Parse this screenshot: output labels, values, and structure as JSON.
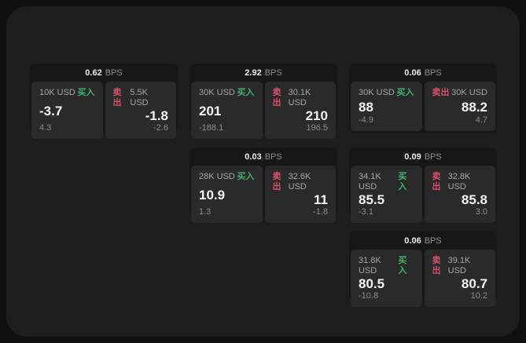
{
  "labels": {
    "bps_unit": "BPS",
    "buy": "买入",
    "sell": "卖出"
  },
  "colors": {
    "surface": "#1e1e1e",
    "card": "#171717",
    "panel": "#2a2a2a",
    "buy_accent": "#3fae6e",
    "sell_accent": "#d8506c",
    "price_text": "#f5f5f5",
    "muted_text": "#8c8c8c"
  },
  "cards": [
    {
      "bps": "0.62",
      "buy": {
        "size": "10K USD",
        "price": "-3.7",
        "delta": "4.3"
      },
      "sell": {
        "size": "5.5K USD",
        "price": "-1.8",
        "delta": "-2.6"
      }
    },
    {
      "bps": "2.92",
      "buy": {
        "size": "30K USD",
        "price": "201",
        "delta": "-188.1"
      },
      "sell": {
        "size": "30.1K USD",
        "price": "210",
        "delta": "196.5"
      }
    },
    {
      "bps": "0.06",
      "buy": {
        "size": "30K USD",
        "price": "88",
        "delta": "-4.9"
      },
      "sell": {
        "size": "30K USD",
        "price": "88.2",
        "delta": "4.7"
      }
    },
    {
      "bps": "0.03",
      "buy": {
        "size": "28K USD",
        "price": "10.9",
        "delta": "1.3"
      },
      "sell": {
        "size": "32.6K USD",
        "price": "11",
        "delta": "-1.8"
      }
    },
    {
      "bps": "0.09",
      "buy": {
        "size": "34.1K USD",
        "price": "85.5",
        "delta": "-3.1"
      },
      "sell": {
        "size": "32.8K USD",
        "price": "85.8",
        "delta": "3.0"
      }
    },
    {
      "bps": "0.06",
      "buy": {
        "size": "31.8K USD",
        "price": "80.5",
        "delta": "-10.8"
      },
      "sell": {
        "size": "39.1K USD",
        "price": "80.7",
        "delta": "10.2"
      }
    }
  ]
}
